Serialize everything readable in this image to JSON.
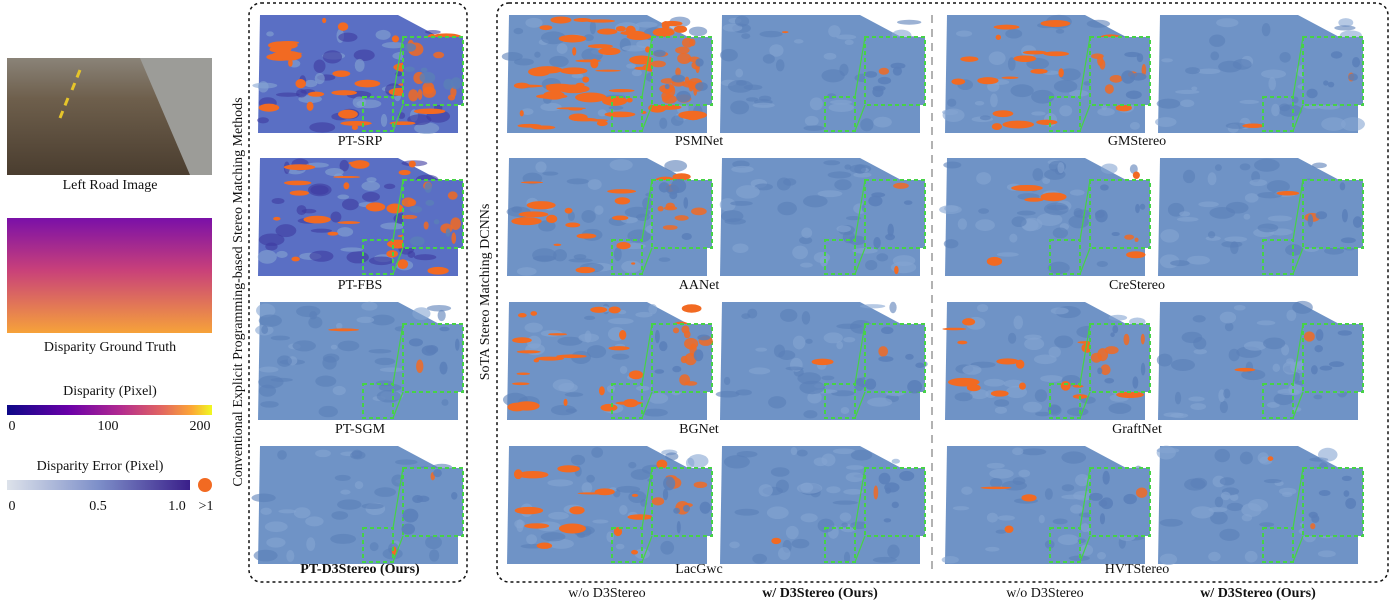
{
  "left": {
    "road_caption": "Left Road Image",
    "gt_caption": "Disparity Ground Truth",
    "disparity_bar": {
      "title": "Disparity (Pixel)",
      "ticks": [
        "0",
        "100",
        "200"
      ]
    },
    "error_bar": {
      "title": "Disparity Error (Pixel)",
      "ticks": [
        "0",
        "0.5",
        "1.0",
        ">1"
      ]
    }
  },
  "conventional": {
    "title": "Conventional Explicit Programming-based Stereo Matching Methods",
    "methods": [
      "PT-SRP",
      "PT-FBS",
      "PT-SGM",
      "PT-D3Stereo (Ours)"
    ]
  },
  "dcnn": {
    "title": "SoTA Stereo Matching DCNNs",
    "groups": [
      {
        "methods": [
          "PSMNet",
          "AANet",
          "BGNet",
          "LacGwc"
        ]
      },
      {
        "methods": [
          "GMStereo",
          "CreStereo",
          "GraftNet",
          "HVTStereo"
        ]
      }
    ],
    "columns": [
      "w/o D3Stereo",
      "w/ D3Stereo (Ours)"
    ]
  }
}
